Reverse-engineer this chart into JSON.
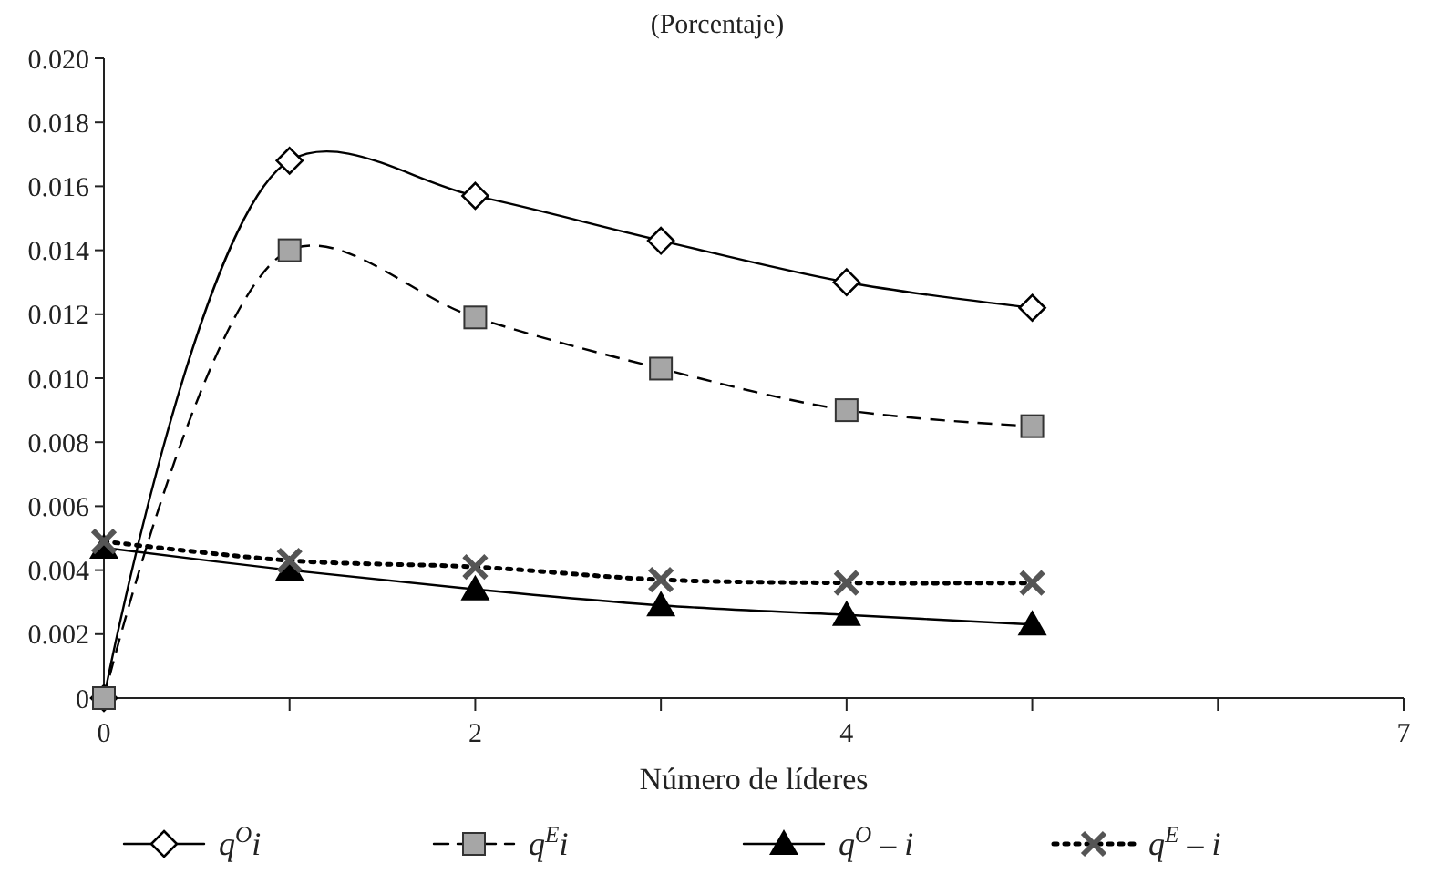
{
  "chart_data": {
    "type": "line",
    "title": "(Porcentaje)",
    "xlabel": "Número de líderes",
    "x": [
      0,
      1,
      2,
      3,
      4,
      5
    ],
    "xlim": [
      0,
      7
    ],
    "xticks": [
      0,
      {
        "value": 1,
        "label": null
      },
      2,
      {
        "value": 3,
        "label": null
      },
      4,
      {
        "value": 5,
        "label": null
      },
      {
        "value": 6,
        "label": null
      },
      7
    ],
    "ylim": [
      0,
      0.02
    ],
    "yticks": [
      {
        "value": 0,
        "label": "0"
      },
      {
        "value": 0.002,
        "label": "0.002"
      },
      {
        "value": 0.004,
        "label": "0.004"
      },
      {
        "value": 0.006,
        "label": "0.006"
      },
      {
        "value": 0.008,
        "label": "0.008"
      },
      {
        "value": 0.01,
        "label": "0.010"
      },
      {
        "value": 0.012,
        "label": "0.012"
      },
      {
        "value": 0.014,
        "label": "0.014"
      },
      {
        "value": 0.016,
        "label": "0.016"
      },
      {
        "value": 0.018,
        "label": "0.018"
      },
      {
        "value": 0.02,
        "label": "0.020"
      }
    ],
    "grid": false,
    "legend": "bottom",
    "series": [
      {
        "name": "q$^{O}$i",
        "color": "#000000",
        "marker": "diamond",
        "line_style": "solid",
        "values": [
          0,
          0.0168,
          0.0157,
          0.0143,
          0.013,
          0.0122
        ]
      },
      {
        "name": "q$^{E}$i",
        "color": "#a6a6a6",
        "marker": "square",
        "line_style": "dashed",
        "values": [
          0,
          0.014,
          0.0119,
          0.0103,
          0.009,
          0.0085
        ]
      },
      {
        "name": "q$^{O}$ – i",
        "color": "#000000",
        "marker": "triangle",
        "line_style": "solid",
        "values": [
          0.0047,
          0.004,
          0.0034,
          0.0029,
          0.0026,
          0.0023
        ]
      },
      {
        "name": "q$^{E}$ – i",
        "color": "#555555",
        "marker": "cross",
        "line_style": "dotted",
        "values": [
          0.0049,
          0.0043,
          0.0041,
          0.0037,
          0.0036,
          0.0036
        ]
      }
    ]
  }
}
